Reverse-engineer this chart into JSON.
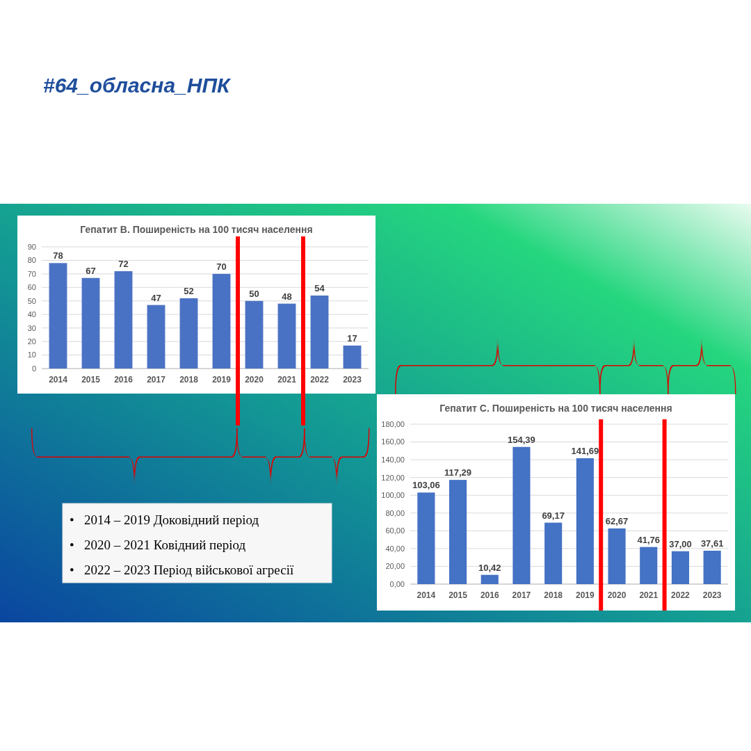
{
  "chart_data": [
    {
      "type": "other",
      "title": "#64_обласна_НПК"
    },
    {
      "type": "bar",
      "title": "Гепатит В. Поширеність на 100 тисяч населення",
      "x": [
        2014,
        2015,
        2016,
        2017,
        2018,
        2019,
        2020,
        2021,
        2022,
        2023
      ],
      "xlim": [
        2013.5,
        2023.5
      ],
      "xticks": [
        2014,
        2015,
        2016,
        2017,
        2018,
        2019,
        2020,
        2021,
        2022,
        2023
      ],
      "values": [
        78,
        67,
        72,
        47,
        52,
        70,
        50,
        48,
        54,
        17
      ],
      "color": "#4a72c4",
      "ylim": [
        0,
        90
      ],
      "yticks": [
        0,
        10,
        20,
        30,
        40,
        50,
        60,
        70,
        80,
        90
      ],
      "grid": "y",
      "data_labels": true,
      "ref_lines": [
        {
          "axis": "x",
          "value": 2019.5,
          "color": "#ff0000"
        },
        {
          "axis": "x",
          "value": 2021.5,
          "color": "#ff0000"
        }
      ]
    },
    {
      "type": "bar",
      "title": "Гепатит С. Поширеність на 100 тисяч населення",
      "x": [
        2014,
        2015,
        2016,
        2017,
        2018,
        2019,
        2020,
        2021,
        2022,
        2023
      ],
      "xlim": [
        2013.5,
        2023.5
      ],
      "xticks": [
        2014,
        2015,
        2016,
        2017,
        2018,
        2019,
        2020,
        2021,
        2022,
        2023
      ],
      "values": [
        103.06,
        117.29,
        10.42,
        154.39,
        69.17,
        141.69,
        62.67,
        41.76,
        37.0,
        37.61
      ],
      "value_labels": [
        "103,06",
        "117,29",
        "10,42",
        "154,39",
        "69,17",
        "141,69",
        "62,67",
        "41,76",
        "37,00",
        "37,61"
      ],
      "color": "#4472c4",
      "ylim": [
        0,
        180
      ],
      "yticks": [
        {
          "value": 0,
          "label": "0,00"
        },
        {
          "value": 20,
          "label": "20,00"
        },
        {
          "value": 40,
          "label": "40,00"
        },
        {
          "value": 60,
          "label": "60,00"
        },
        {
          "value": 80,
          "label": "80,00"
        },
        {
          "value": 100,
          "label": "100,00"
        },
        {
          "value": 120,
          "label": "120,00"
        },
        {
          "value": 140,
          "label": "140,00"
        },
        {
          "value": 160,
          "label": "160,00"
        },
        {
          "value": 180,
          "label": "180,00"
        }
      ],
      "grid": "y",
      "ref_lines": [
        {
          "axis": "x",
          "value": 2019.5,
          "color": "#ff0000"
        },
        {
          "axis": "x",
          "value": 2021.5,
          "color": "#ff0000"
        }
      ]
    },
    {
      "type": "other",
      "annotations": [
        "•   2014 – 2019 Доковідний період",
        "•   2020 – 2021 Ковідний період",
        "•   2022 – 2023 Період військової агресії"
      ]
    }
  ]
}
